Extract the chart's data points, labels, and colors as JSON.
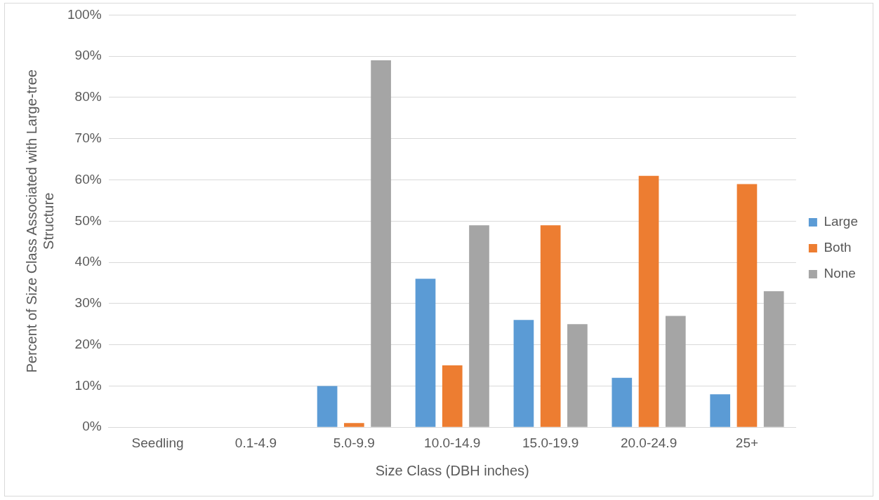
{
  "chart_data": {
    "type": "bar",
    "xlabel": "Size Class (DBH inches)",
    "ylabel": "Percent of Size Class Associated with Large-tree Structure",
    "categories": [
      "Seedling",
      "0.1-4.9",
      "5.0-9.9",
      "10.0-14.9",
      "15.0-19.9",
      "20.0-24.9",
      "25+"
    ],
    "series": [
      {
        "name": "Large",
        "color": "#5b9bd5",
        "values": [
          0,
          0,
          10,
          36,
          26,
          12,
          8
        ]
      },
      {
        "name": "Both",
        "color": "#ed7d31",
        "values": [
          0,
          0,
          1,
          15,
          49,
          61,
          59
        ]
      },
      {
        "name": "None",
        "color": "#a5a5a5",
        "values": [
          0,
          0,
          89,
          49,
          25,
          27,
          33
        ]
      }
    ],
    "ylim": [
      0,
      100
    ],
    "yticks": [
      {
        "value": 0,
        "label": "0%"
      },
      {
        "value": 10,
        "label": "10%"
      },
      {
        "value": 20,
        "label": "20%"
      },
      {
        "value": 30,
        "label": "30%"
      },
      {
        "value": 40,
        "label": "40%"
      },
      {
        "value": 50,
        "label": "50%"
      },
      {
        "value": 60,
        "label": "60%"
      },
      {
        "value": 70,
        "label": "70%"
      },
      {
        "value": 80,
        "label": "80%"
      },
      {
        "value": 90,
        "label": "90%"
      },
      {
        "value": 100,
        "label": "100%"
      }
    ],
    "grid": "y",
    "legend": "right"
  }
}
